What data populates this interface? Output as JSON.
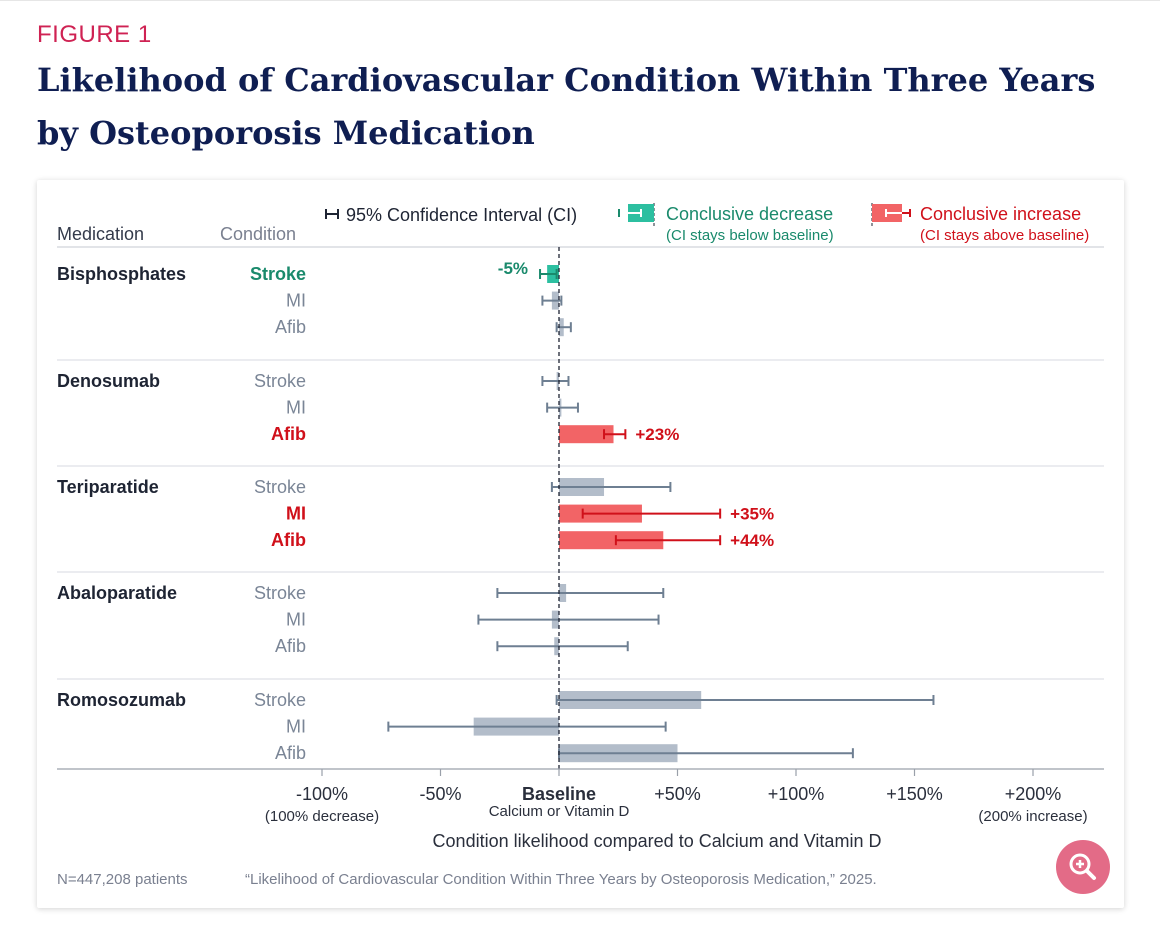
{
  "figure_label": "FIGURE 1",
  "title": "Likelihood of Cardiovascular Condition Within Three Years by Osteoporosis Medication",
  "columns": {
    "medication": "Medication",
    "condition": "Condition"
  },
  "legend": {
    "ci": "95% Confidence Interval (CI)",
    "decrease": "Conclusive decrease",
    "decrease_note": "(CI stays below baseline)",
    "increase": "Conclusive increase",
    "increase_note": "(CI stays above baseline)"
  },
  "colors": {
    "neutral_bar": "#b3bdca",
    "neutral_ci": "#6e7f92",
    "decrease": "#2cbfa0",
    "decrease_text": "#1a8a6c",
    "increase": "#f26466",
    "increase_text": "#d0101a"
  },
  "axis": {
    "title": "Condition likelihood compared to Calcium and Vitamin D",
    "baseline_label": "Baseline",
    "baseline_sub": "Calcium or Vitamin D",
    "left_note": "(100% decrease)",
    "right_note": "(200% increase)"
  },
  "footer": {
    "n": "N=447,208 patients",
    "citation": "“Likelihood of Cardiovascular Condition Within Three Years by Osteoporosis Medication,” 2025."
  },
  "icons": {
    "zoom": "zoom-in-icon"
  },
  "chart_data": {
    "type": "bar",
    "orientation": "horizontal",
    "xlim": [
      -100,
      200
    ],
    "xticks": [
      -100,
      -50,
      0,
      50,
      100,
      150,
      200
    ],
    "xtick_labels": [
      "-100%",
      "-50%",
      "Baseline",
      "+50%",
      "+100%",
      "+150%",
      "+200%"
    ],
    "groups": [
      {
        "medication": "Bisphosphates",
        "rows": [
          {
            "condition": "Stroke",
            "value": -5,
            "ci": [
              -8,
              -1
            ],
            "status": "decrease",
            "label": "-5%"
          },
          {
            "condition": "MI",
            "value": -3,
            "ci": [
              -7,
              1
            ],
            "status": "neutral",
            "label": ""
          },
          {
            "condition": "Afib",
            "value": 2,
            "ci": [
              -1,
              5
            ],
            "status": "neutral",
            "label": ""
          }
        ]
      },
      {
        "medication": "Denosumab",
        "rows": [
          {
            "condition": "Stroke",
            "value": -1,
            "ci": [
              -7,
              4
            ],
            "status": "neutral",
            "label": ""
          },
          {
            "condition": "MI",
            "value": 1,
            "ci": [
              -5,
              8
            ],
            "status": "neutral",
            "label": ""
          },
          {
            "condition": "Afib",
            "value": 23,
            "ci": [
              19,
              28
            ],
            "status": "increase",
            "label": "+23%"
          }
        ]
      },
      {
        "medication": "Teriparatide",
        "rows": [
          {
            "condition": "Stroke",
            "value": 19,
            "ci": [
              -3,
              47
            ],
            "status": "neutral",
            "label": ""
          },
          {
            "condition": "MI",
            "value": 35,
            "ci": [
              10,
              68
            ],
            "status": "increase",
            "label": "+35%"
          },
          {
            "condition": "Afib",
            "value": 44,
            "ci": [
              24,
              68
            ],
            "status": "increase",
            "label": "+44%"
          }
        ]
      },
      {
        "medication": "Abaloparatide",
        "rows": [
          {
            "condition": "Stroke",
            "value": 3,
            "ci": [
              -26,
              44
            ],
            "status": "neutral",
            "label": ""
          },
          {
            "condition": "MI",
            "value": -3,
            "ci": [
              -34,
              42
            ],
            "status": "neutral",
            "label": ""
          },
          {
            "condition": "Afib",
            "value": -2,
            "ci": [
              -26,
              29
            ],
            "status": "neutral",
            "label": ""
          }
        ]
      },
      {
        "medication": "Romosozumab",
        "rows": [
          {
            "condition": "Stroke",
            "value": 60,
            "ci": [
              -1,
              158
            ],
            "status": "neutral",
            "label": ""
          },
          {
            "condition": "MI",
            "value": -36,
            "ci": [
              -72,
              45
            ],
            "status": "neutral",
            "label": ""
          },
          {
            "condition": "Afib",
            "value": 50,
            "ci": [
              0,
              124
            ],
            "status": "neutral",
            "label": ""
          }
        ]
      }
    ]
  }
}
